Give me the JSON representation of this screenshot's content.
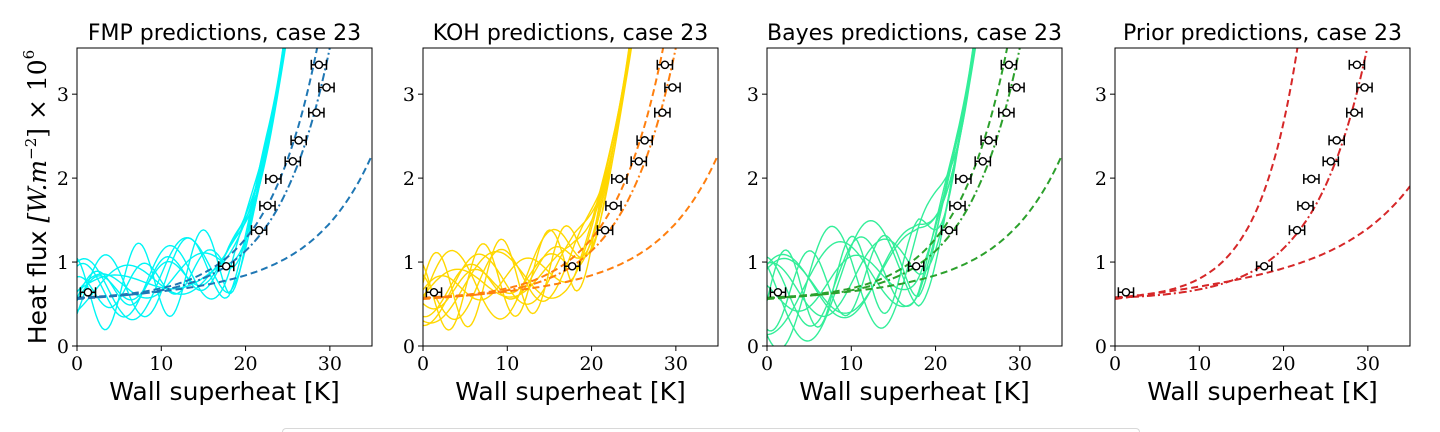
{
  "figure": {
    "ylabel": "Heat flux [W.m^-2] × 10^6",
    "ylabel_main": "Heat flux ",
    "ylabel_math": "[W.m",
    "ylabel_exp1": "−2",
    "ylabel_mid": "] × 10",
    "ylabel_exp2": "6"
  },
  "chart_data": [
    {
      "type": "line",
      "title": "FMP predictions, case 23",
      "xlabel": "Wall superheat [K]",
      "xlim": [
        0,
        35
      ],
      "ylim": [
        0,
        3.55
      ],
      "xticks": [
        "0",
        "10",
        "20",
        "30"
      ],
      "yticks": [
        "0",
        "1",
        "2",
        "3"
      ],
      "sample_color": "#00f5f5",
      "model_color": "#1f77b4",
      "observations": {
        "x": [
          1.3,
          17.7,
          21.6,
          22.6,
          23.3,
          25.6,
          26.3,
          28.4,
          29.6,
          28.7
        ],
        "y": [
          0.64,
          0.95,
          1.38,
          1.67,
          1.99,
          2.2,
          2.45,
          2.78,
          3.08,
          3.35
        ],
        "xerr": 0.9
      }
    },
    {
      "type": "line",
      "title": "KOH predictions, case 23",
      "xlabel": "Wall superheat [K]",
      "xlim": [
        0,
        35
      ],
      "ylim": [
        0,
        3.55
      ],
      "xticks": [
        "0",
        "10",
        "20",
        "30"
      ],
      "yticks": [
        "0",
        "1",
        "2",
        "3"
      ],
      "sample_color": "#ffd700",
      "model_color": "#ff7f0e",
      "observations": {
        "x": [
          1.3,
          17.7,
          21.6,
          22.6,
          23.3,
          25.6,
          26.3,
          28.4,
          29.6,
          28.7
        ],
        "y": [
          0.64,
          0.95,
          1.38,
          1.67,
          1.99,
          2.2,
          2.45,
          2.78,
          3.08,
          3.35
        ],
        "xerr": 0.9
      }
    },
    {
      "type": "line",
      "title": "Bayes predictions, case 23",
      "xlabel": "Wall superheat [K]",
      "xlim": [
        0,
        35
      ],
      "ylim": [
        0,
        3.55
      ],
      "xticks": [
        "0",
        "10",
        "20",
        "30"
      ],
      "yticks": [
        "0",
        "1",
        "2",
        "3"
      ],
      "sample_color": "#33ee99",
      "model_color": "#2ca02c",
      "observations": {
        "x": [
          1.3,
          17.7,
          21.6,
          22.6,
          23.3,
          25.6,
          26.3,
          28.4,
          29.6,
          28.7
        ],
        "y": [
          0.64,
          0.95,
          1.38,
          1.67,
          1.99,
          2.2,
          2.45,
          2.78,
          3.08,
          3.35
        ],
        "xerr": 0.9
      }
    },
    {
      "type": "line",
      "title": "Prior predictions, case 23",
      "xlabel": "Wall superheat [K]",
      "xlim": [
        0,
        35
      ],
      "ylim": [
        0,
        3.55
      ],
      "xticks": [
        "0",
        "10",
        "20",
        "30"
      ],
      "yticks": [
        "0",
        "1",
        "2",
        "3"
      ],
      "sample_color": null,
      "model_color": "#d62728",
      "observations": {
        "x": [
          1.3,
          17.7,
          21.6,
          22.6,
          23.3,
          25.6,
          26.3,
          28.4,
          29.6,
          28.7
        ],
        "y": [
          0.64,
          0.95,
          1.38,
          1.67,
          1.99,
          2.2,
          2.45,
          2.78,
          3.08,
          3.35
        ],
        "xerr": 0.9
      }
    }
  ]
}
